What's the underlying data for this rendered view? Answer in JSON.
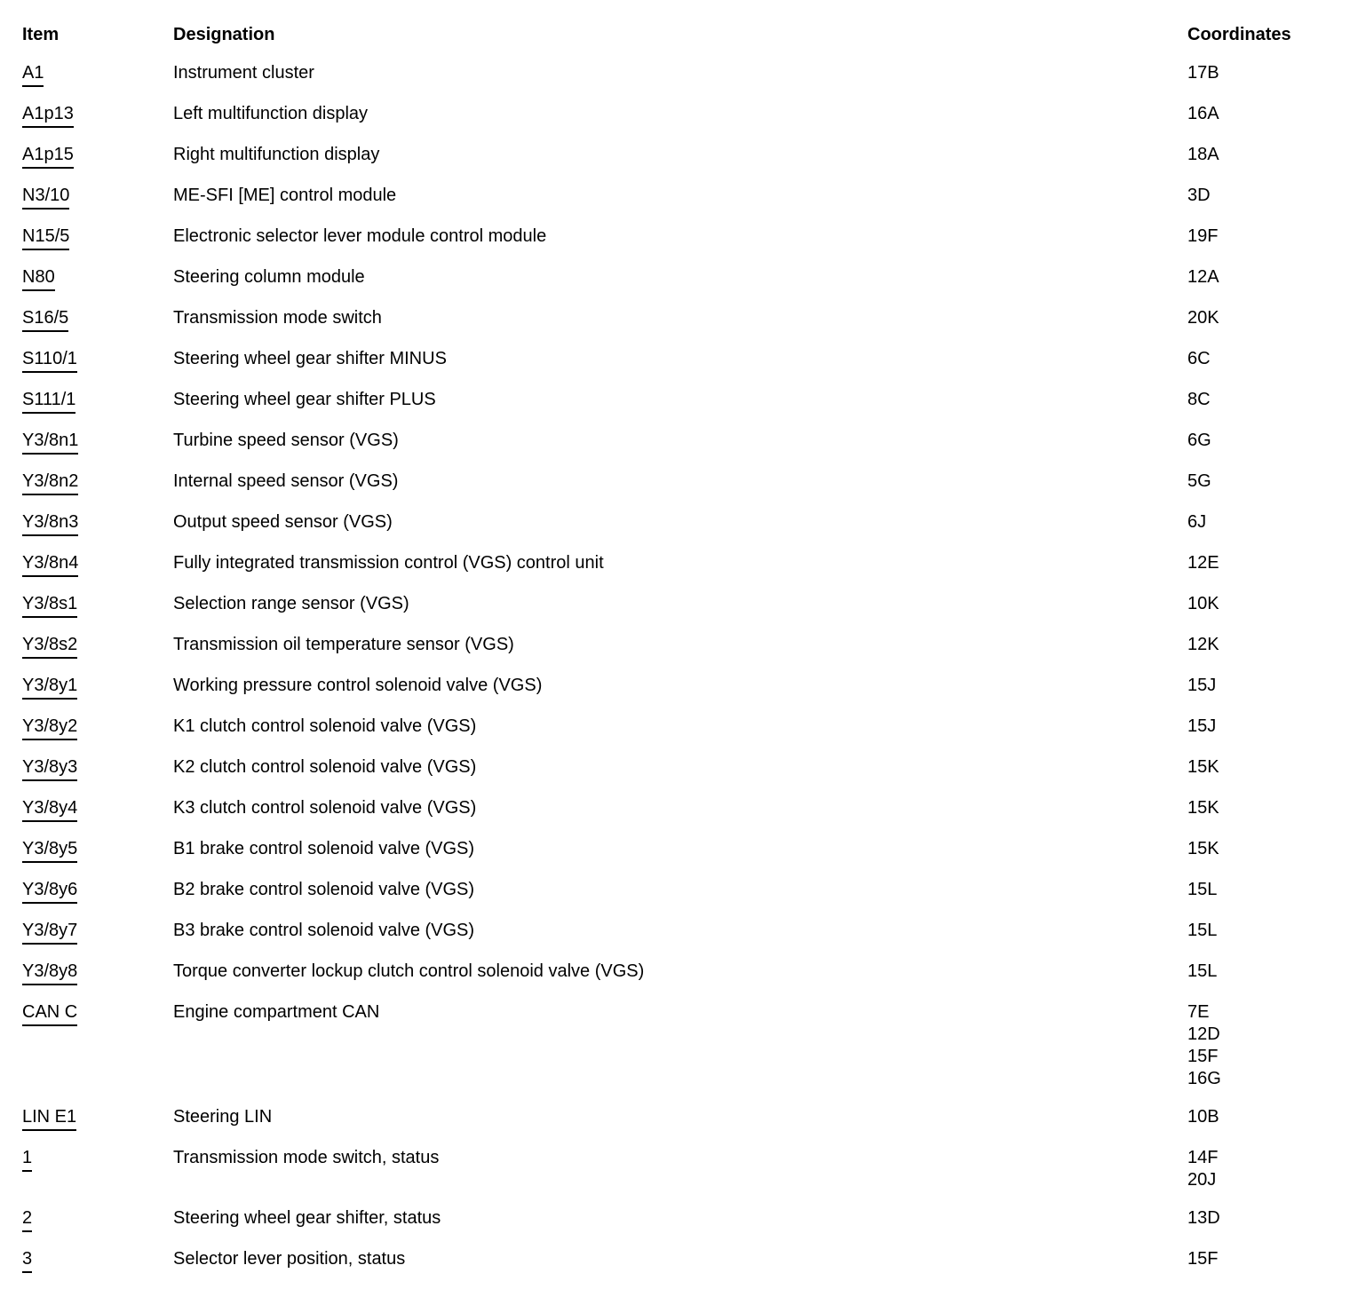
{
  "table": {
    "headers": {
      "item": "Item",
      "designation": "Designation",
      "coordinates": "Coordinates"
    },
    "rows": [
      {
        "item": "A1",
        "designation": "Instrument cluster",
        "coordinates": [
          "17B"
        ]
      },
      {
        "item": "A1p13",
        "designation": "Left multifunction display",
        "coordinates": [
          "16A"
        ]
      },
      {
        "item": "A1p15",
        "designation": "Right multifunction display",
        "coordinates": [
          "18A"
        ]
      },
      {
        "item": "N3/10",
        "designation": "ME-SFI [ME] control module",
        "coordinates": [
          "3D"
        ]
      },
      {
        "item": "N15/5",
        "designation": "Electronic selector lever module control module",
        "coordinates": [
          "19F"
        ]
      },
      {
        "item": "N80",
        "designation": "Steering column module",
        "coordinates": [
          "12A"
        ]
      },
      {
        "item": "S16/5",
        "designation": "Transmission mode switch",
        "coordinates": [
          "20K"
        ]
      },
      {
        "item": "S110/1",
        "designation": "Steering wheel gear shifter MINUS",
        "coordinates": [
          "6C"
        ]
      },
      {
        "item": "S111/1",
        "designation": "Steering wheel gear shifter PLUS",
        "coordinates": [
          "8C"
        ]
      },
      {
        "item": "Y3/8n1",
        "designation": "Turbine speed sensor (VGS)",
        "coordinates": [
          "6G"
        ]
      },
      {
        "item": "Y3/8n2",
        "designation": "Internal speed sensor (VGS)",
        "coordinates": [
          "5G"
        ]
      },
      {
        "item": "Y3/8n3",
        "designation": "Output speed sensor (VGS)",
        "coordinates": [
          "6J"
        ]
      },
      {
        "item": "Y3/8n4",
        "designation": "Fully integrated transmission control (VGS) control unit",
        "coordinates": [
          "12E"
        ]
      },
      {
        "item": "Y3/8s1",
        "designation": "Selection range sensor (VGS)",
        "coordinates": [
          "10K"
        ]
      },
      {
        "item": "Y3/8s2",
        "designation": "Transmission oil temperature sensor (VGS)",
        "coordinates": [
          "12K"
        ]
      },
      {
        "item": "Y3/8y1",
        "designation": "Working pressure control solenoid valve (VGS)",
        "coordinates": [
          "15J"
        ]
      },
      {
        "item": "Y3/8y2",
        "designation": "K1 clutch control solenoid valve (VGS)",
        "coordinates": [
          "15J"
        ]
      },
      {
        "item": "Y3/8y3",
        "designation": "K2 clutch control solenoid valve (VGS)",
        "coordinates": [
          "15K"
        ]
      },
      {
        "item": "Y3/8y4",
        "designation": "K3 clutch control solenoid valve (VGS)",
        "coordinates": [
          "15K"
        ]
      },
      {
        "item": "Y3/8y5",
        "designation": "B1 brake control solenoid valve (VGS)",
        "coordinates": [
          "15K"
        ]
      },
      {
        "item": "Y3/8y6",
        "designation": "B2 brake control solenoid valve (VGS)",
        "coordinates": [
          "15L"
        ]
      },
      {
        "item": "Y3/8y7",
        "designation": "B3 brake control solenoid valve (VGS)",
        "coordinates": [
          "15L"
        ]
      },
      {
        "item": "Y3/8y8",
        "designation": "Torque converter lockup clutch control solenoid valve (VGS)",
        "coordinates": [
          "15L"
        ]
      },
      {
        "item": "CAN C",
        "designation": "Engine compartment CAN",
        "coordinates": [
          "7E",
          "12D",
          "15F",
          "16G"
        ]
      },
      {
        "item": "LIN E1",
        "designation": "Steering LIN",
        "coordinates": [
          "10B"
        ]
      },
      {
        "item": "1",
        "designation": "Transmission mode switch, status",
        "coordinates": [
          "14F",
          "20J"
        ]
      },
      {
        "item": "2",
        "designation": "Steering wheel gear shifter, status",
        "coordinates": [
          "13D"
        ]
      },
      {
        "item": "3",
        "designation": "Selector lever position, status",
        "coordinates": [
          "15F"
        ]
      }
    ]
  }
}
